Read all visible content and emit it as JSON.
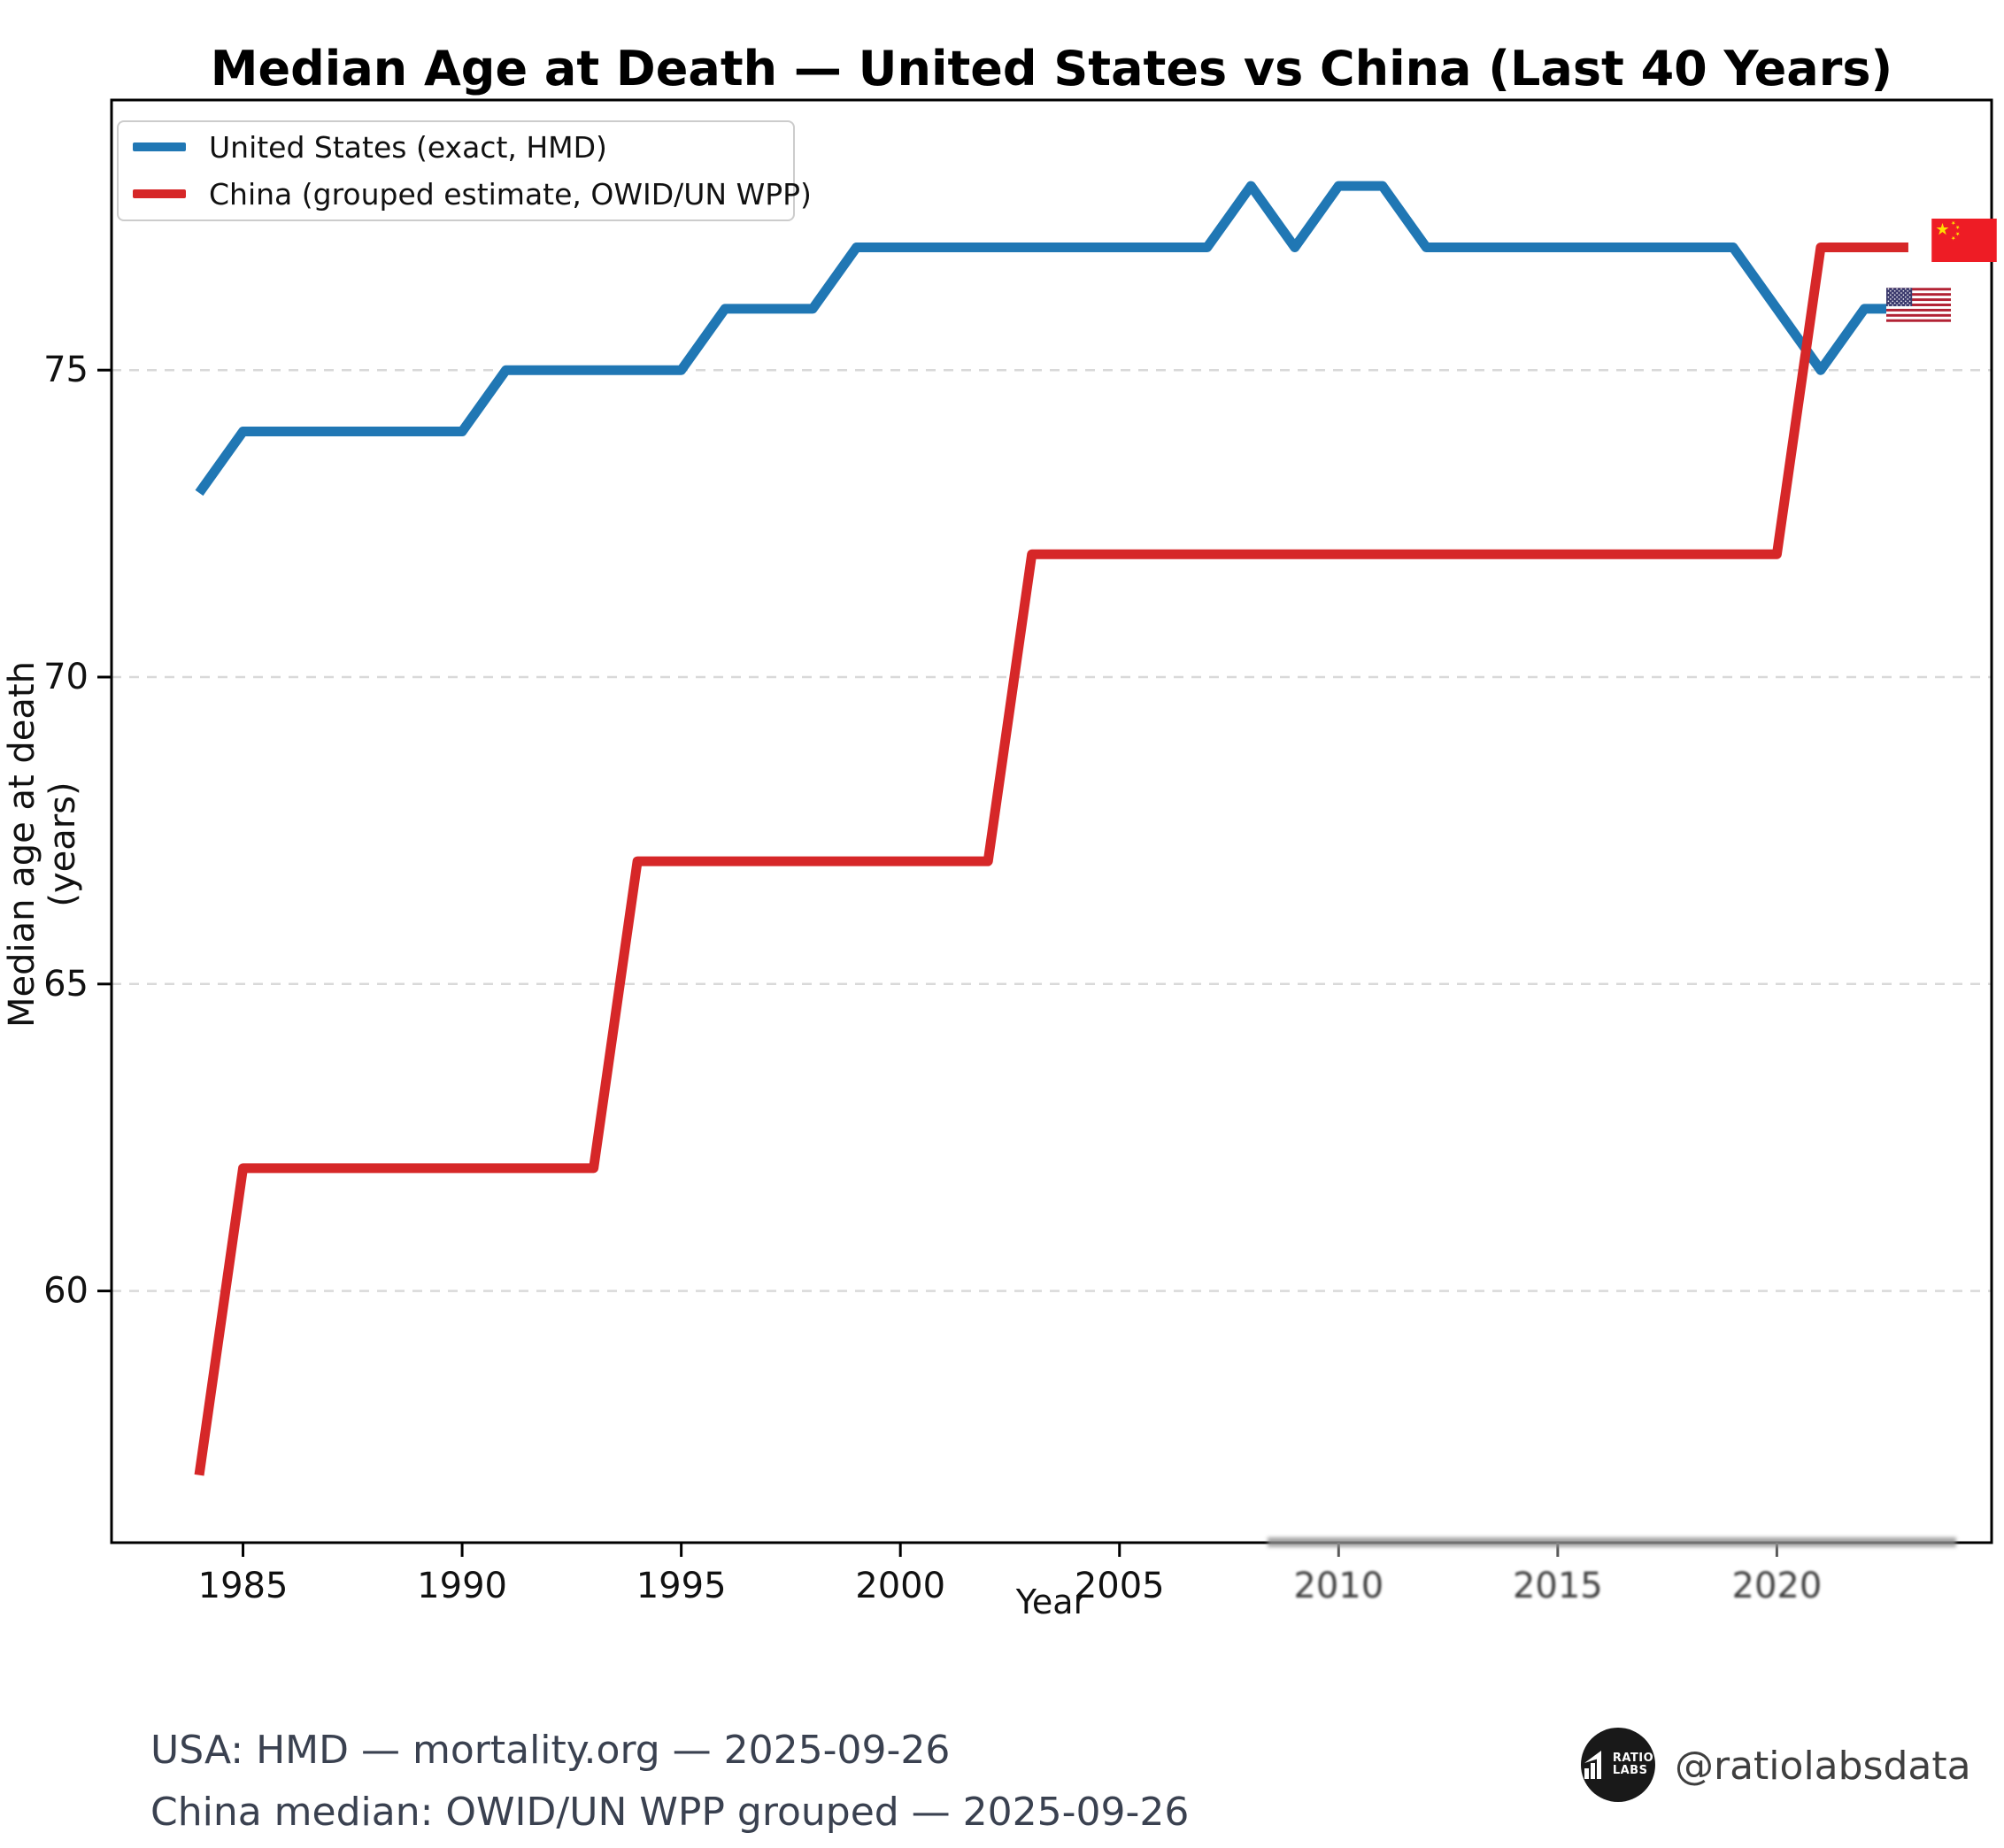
{
  "title": "Median Age at Death — United States vs China (Last 40 Years)",
  "legend": [
    {
      "label": "United States (exact, HMD)",
      "color": "#2077b4"
    },
    {
      "label": "China (grouped estimate, OWID/UN WPP)",
      "color": "#d62728"
    }
  ],
  "chart_data": {
    "type": "line",
    "title": "Median Age at Death — United States vs China (Last 40 Years)",
    "xlabel": "Year",
    "ylabel": "Median age at death (years)",
    "xlim": [
      1982.0,
      2024.9
    ],
    "ylim": [
      55.9,
      79.4
    ],
    "xticks": [
      1985,
      1990,
      1995,
      2000,
      2005,
      2010,
      2015,
      2020
    ],
    "yticks": [
      60,
      65,
      70,
      75
    ],
    "grid": "horizontal-dashed",
    "legend_position": "upper-left",
    "x": [
      1984,
      1985,
      1986,
      1987,
      1988,
      1989,
      1990,
      1991,
      1992,
      1993,
      1994,
      1995,
      1996,
      1997,
      1998,
      1999,
      2000,
      2001,
      2002,
      2003,
      2004,
      2005,
      2006,
      2007,
      2008,
      2009,
      2010,
      2011,
      2012,
      2013,
      2014,
      2015,
      2016,
      2017,
      2018,
      2019,
      2020,
      2021,
      2022,
      2023
    ],
    "series": [
      {
        "name": "United States (exact, HMD)",
        "color": "#2077b4",
        "values": [
          73,
          74,
          74,
          74,
          74,
          74,
          74,
          75,
          75,
          75,
          75,
          75,
          76,
          76,
          76,
          77,
          77,
          77,
          77,
          77,
          77,
          77,
          77,
          77,
          78,
          77,
          78,
          78,
          77,
          77,
          77,
          77,
          77,
          77,
          77,
          77,
          76,
          75,
          76,
          76
        ]
      },
      {
        "name": "China (grouped estimate, OWID/UN WPP)",
        "color": "#d62728",
        "values": [
          57,
          62,
          62,
          62,
          62,
          62,
          62,
          62,
          62,
          62,
          67,
          67,
          67,
          67,
          67,
          67,
          67,
          67,
          67,
          72,
          72,
          72,
          72,
          72,
          72,
          72,
          72,
          72,
          72,
          72,
          72,
          72,
          72,
          72,
          72,
          72,
          72,
          77,
          77,
          77
        ]
      }
    ],
    "end_markers": [
      {
        "series": "China (grouped estimate, OWID/UN WPP)",
        "marker": "china-flag"
      },
      {
        "series": "United States (exact, HMD)",
        "marker": "us-flag"
      }
    ]
  },
  "footer": {
    "line1": "USA: HMD — mortality.org — 2025-09-26",
    "line2": "China median: OWID/UN WPP grouped — 2025-09-26",
    "handle": "@ratiolabsdata",
    "logo_line1": "RATIO",
    "logo_line2": "LABS"
  }
}
